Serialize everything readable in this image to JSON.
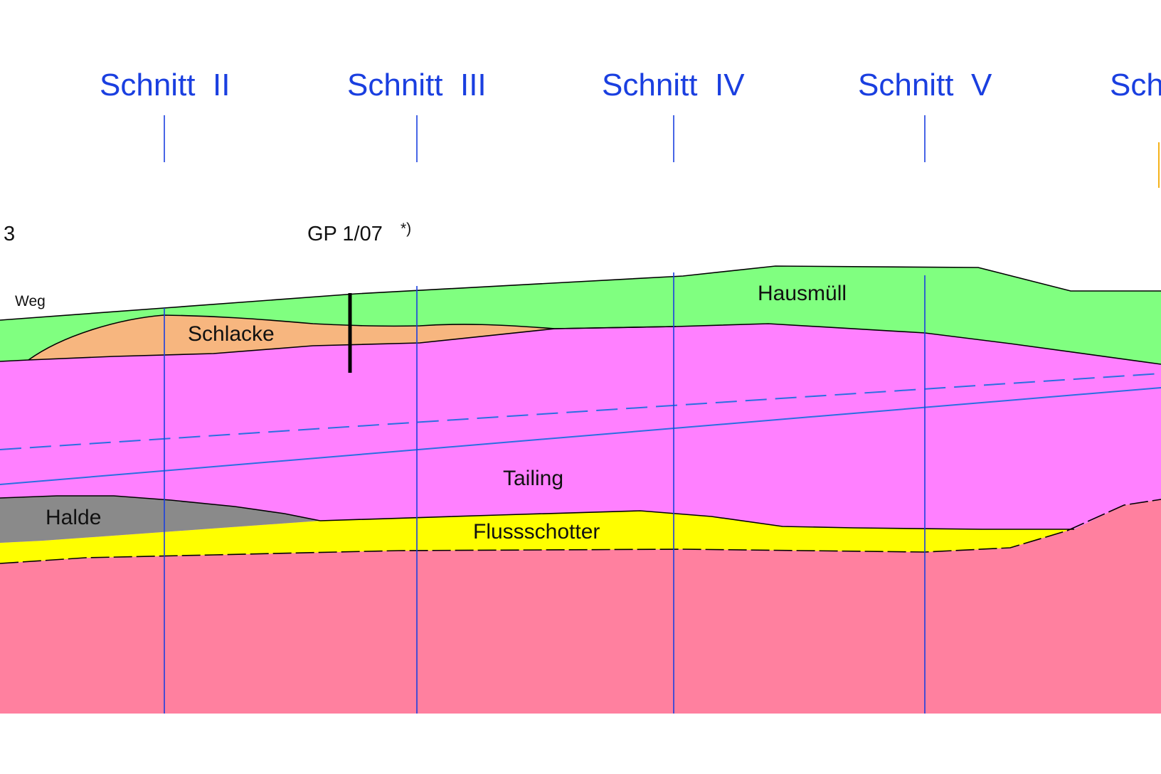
{
  "sections": [
    {
      "label": "Schnitt  II"
    },
    {
      "label": "Schnitt  III"
    },
    {
      "label": "Schnitt  IV"
    },
    {
      "label": "Schnitt  V"
    },
    {
      "label": "Sch"
    }
  ],
  "layers": {
    "hausmuell": {
      "label": "Hausmüll",
      "color": "#80ff80"
    },
    "schlacke": {
      "label": "Schlacke",
      "color": "#f7b67f"
    },
    "tailing": {
      "label": "Tailing",
      "color": "#ff80ff"
    },
    "halde": {
      "label": "Halde",
      "color": "#8a8a8a"
    },
    "flussschotter": {
      "label": "Flussschotter",
      "color": "#ffff00"
    },
    "bedrock": {
      "color": "#ff809f"
    }
  },
  "annotations": {
    "weg": "Weg",
    "borehole_label": "GP 1/07",
    "borehole_note": "*)",
    "left_fragment": "3"
  },
  "colors": {
    "section_line": "#1a3fe0",
    "water_line": "#2a6fe0",
    "boundary": "#000000",
    "marker": "#f5b21a"
  }
}
